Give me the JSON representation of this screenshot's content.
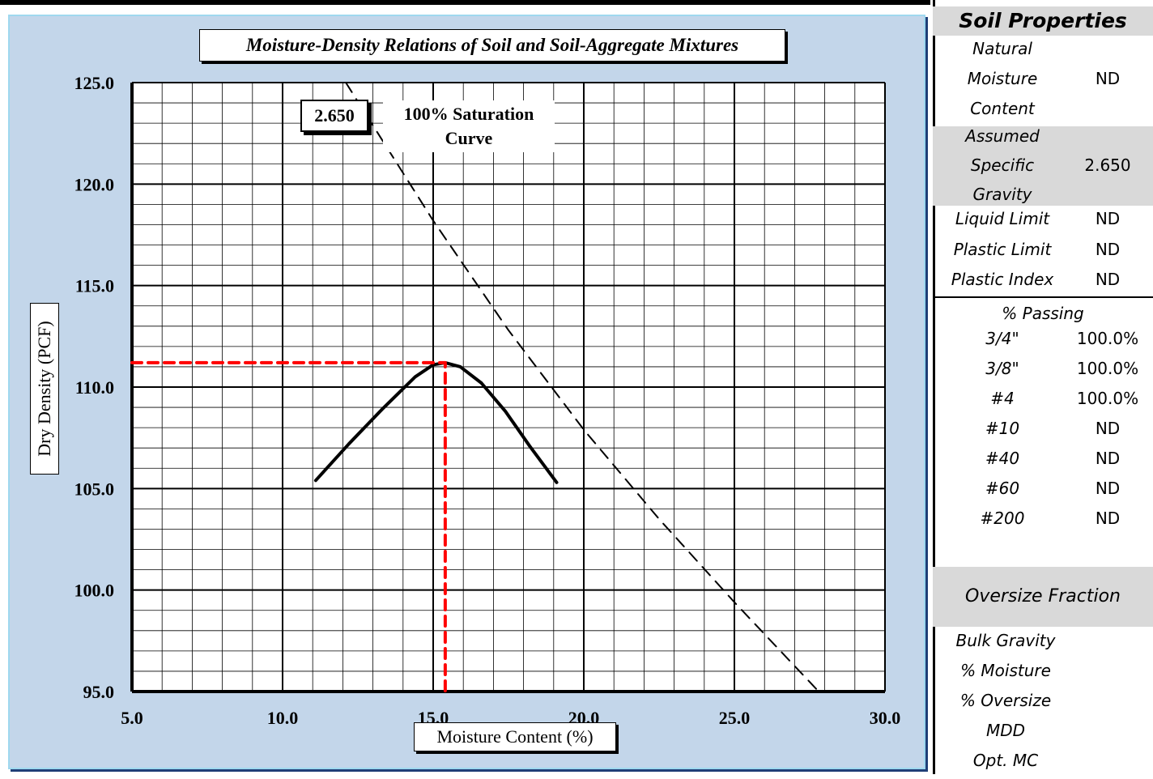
{
  "chart_data": {
    "type": "line",
    "title": "Moisture-Density Relations of Soil and Soil-Aggregate Mixtures",
    "xlabel": "Moisture Content (%)",
    "ylabel": "Dry Density (PCF)",
    "xlim": [
      5.0,
      30.0
    ],
    "ylim": [
      95.0,
      125.0
    ],
    "x_ticks": [
      "5.0",
      "10.0",
      "15.0",
      "20.0",
      "25.0",
      "30.0"
    ],
    "y_ticks": [
      "95.0",
      "100.0",
      "105.0",
      "110.0",
      "115.0",
      "120.0",
      "125.0"
    ],
    "grid": true,
    "series": [
      {
        "type": "line",
        "color": "#000000",
        "x": [
          11.1,
          12.2,
          13.3,
          14.4,
          15.0,
          15.4,
          15.9,
          16.6,
          17.4,
          18.2,
          19.1
        ],
        "y": [
          105.4,
          107.2,
          108.9,
          110.5,
          111.1,
          111.2,
          111.0,
          110.2,
          108.8,
          107.1,
          105.3
        ]
      },
      {
        "type": "line",
        "color": "#000000",
        "dash": "dashed",
        "x": [
          12.1,
          15.0,
          17.5,
          20.0,
          22.5,
          25.0,
          27.8
        ],
        "y": [
          125.0,
          118.2,
          112.8,
          107.9,
          103.5,
          99.4,
          95.0
        ]
      },
      {
        "type": "line",
        "color": "#ff0000",
        "dash": "dashed",
        "x": [
          5.0,
          15.4,
          15.4
        ],
        "y": [
          111.2,
          111.2,
          95.0
        ]
      }
    ],
    "annotations": {
      "specific_gravity": "2.650",
      "saturation_label_line1": "100% Saturation",
      "saturation_label_line2": "Curve"
    }
  },
  "properties": {
    "header": "Soil Properties",
    "natural_moisture": {
      "l1": "Natural",
      "l2": "Moisture",
      "l3": "Content",
      "value": "ND"
    },
    "specific_gravity": {
      "l1": "Assumed",
      "l2": "Specific",
      "l3": "Gravity",
      "value": "2.650"
    },
    "liquid_limit": {
      "label": "Liquid Limit",
      "value": "ND"
    },
    "plastic_limit": {
      "label": "Plastic Limit",
      "value": "ND"
    },
    "plastic_index": {
      "label": "Plastic Index",
      "value": "ND"
    }
  },
  "passing": {
    "title": "% Passing",
    "rows": [
      {
        "sieve": "3/4\"",
        "value": "100.0%"
      },
      {
        "sieve": "3/8\"",
        "value": "100.0%"
      },
      {
        "sieve": "#4",
        "value": "100.0%"
      },
      {
        "sieve": "#10",
        "value": "ND"
      },
      {
        "sieve": "#40",
        "value": "ND"
      },
      {
        "sieve": "#60",
        "value": "ND"
      },
      {
        "sieve": "#200",
        "value": "ND"
      }
    ]
  },
  "oversize": {
    "title": "Oversize Fraction",
    "items": [
      "Bulk Gravity",
      "% Moisture",
      "% Oversize",
      "MDD",
      "Opt. MC"
    ]
  }
}
